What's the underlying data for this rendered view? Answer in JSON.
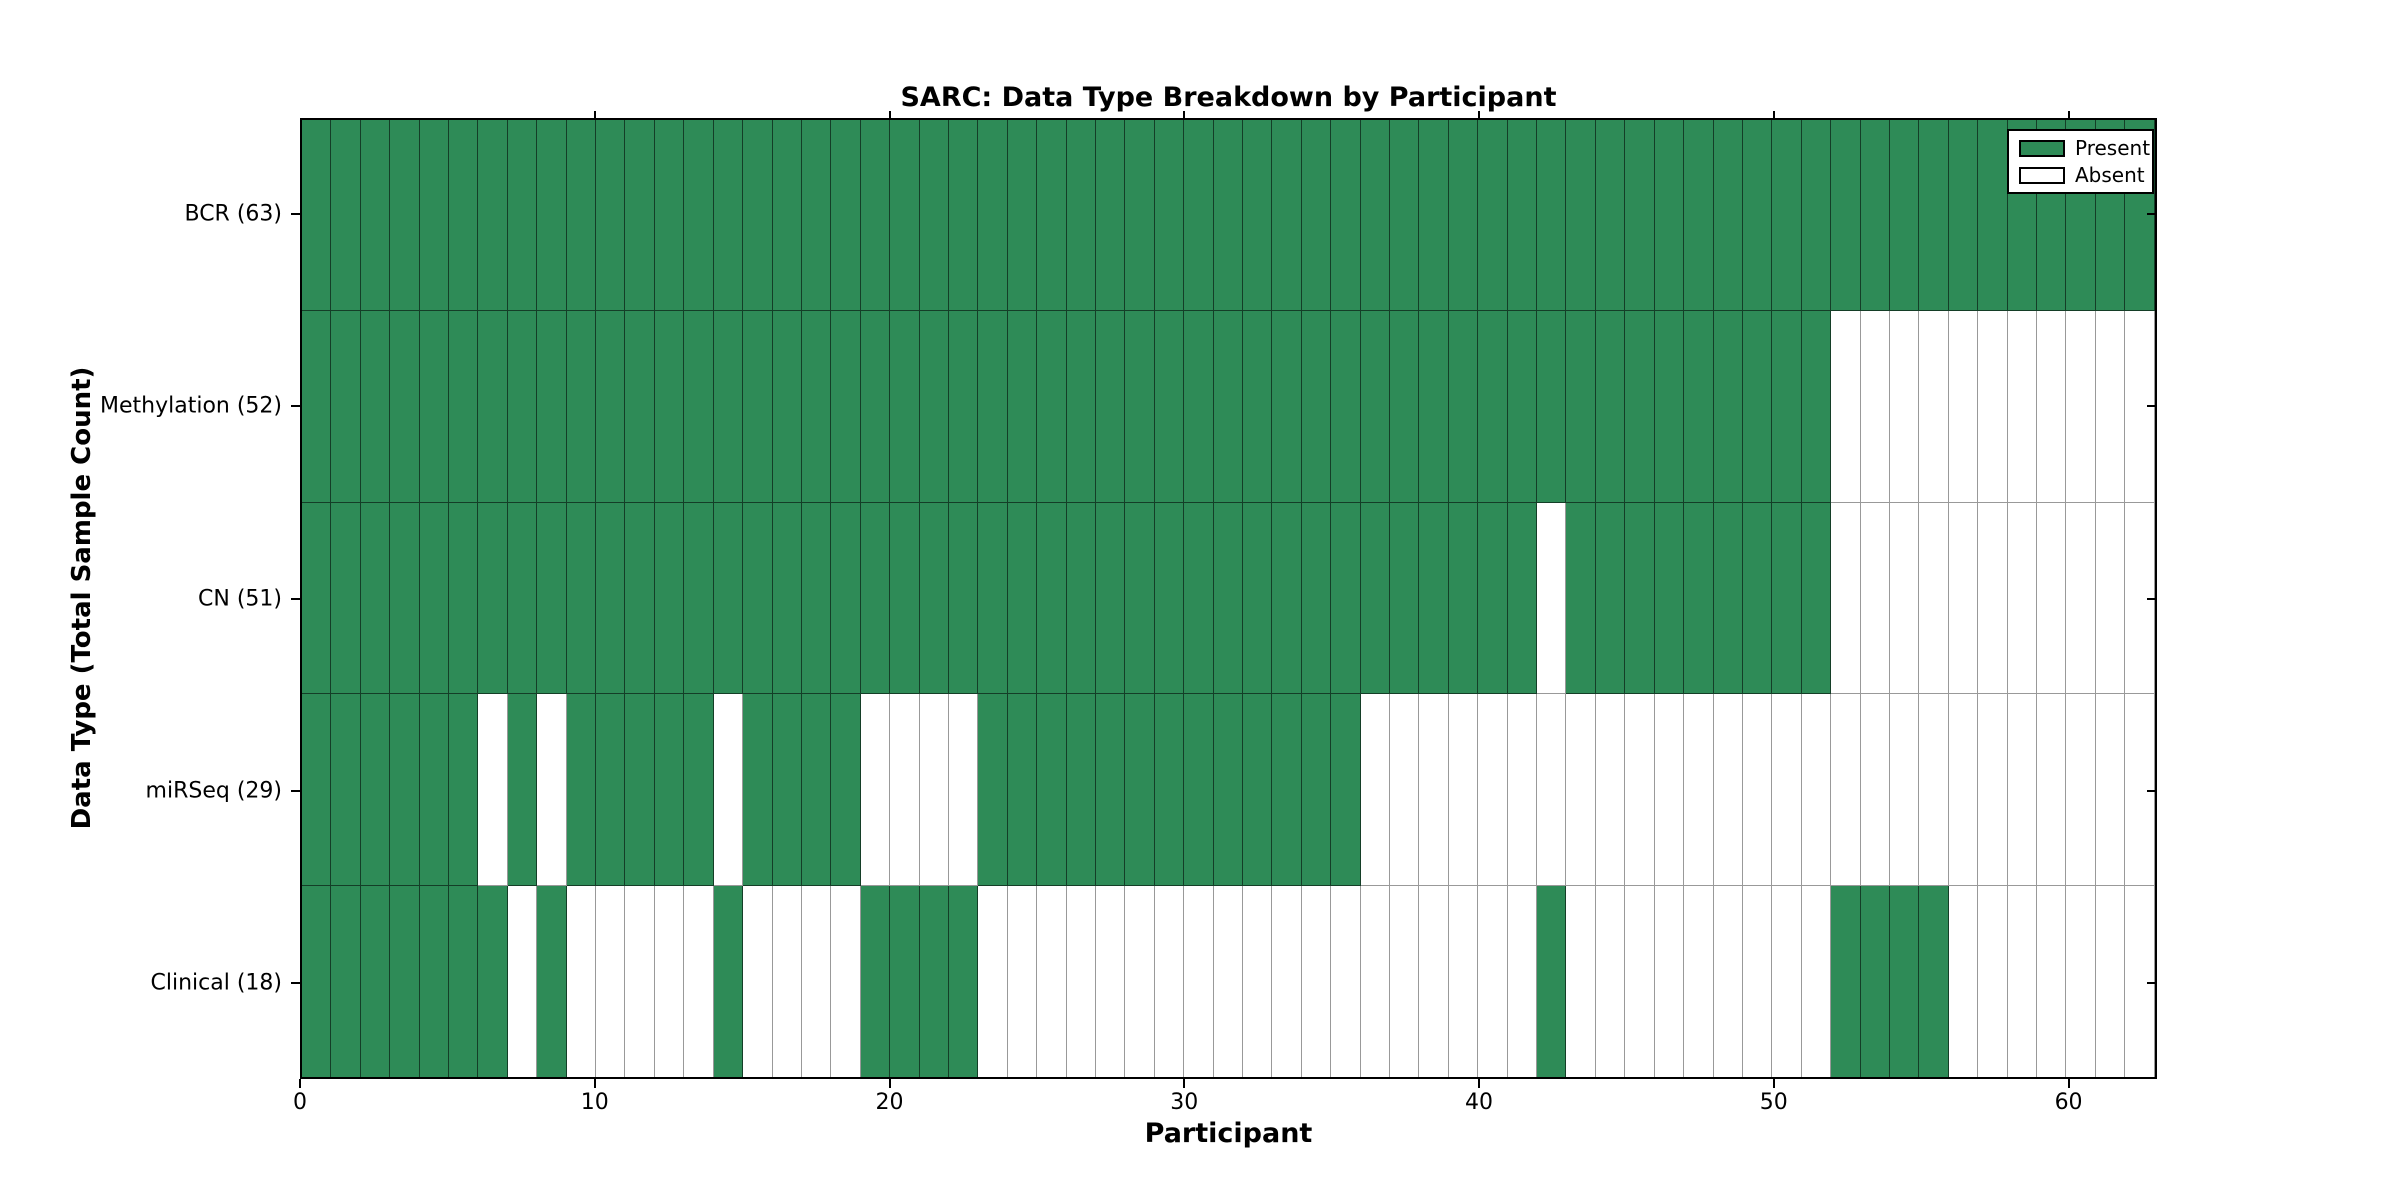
{
  "title": "SARC: Data Type Breakdown by Participant",
  "x_axis": {
    "label": "Participant",
    "ticks": [
      0,
      10,
      20,
      30,
      40,
      50,
      60
    ],
    "range": [
      0,
      63
    ]
  },
  "y_axis": {
    "label": "Data Type (Total Sample Count)"
  },
  "legend": {
    "present_label": "Present",
    "absent_label": "Absent"
  },
  "colors": {
    "present": "#2E8B57",
    "absent": "#FFFFFF"
  },
  "chart_data": {
    "type": "heatmap",
    "title": "SARC: Data Type Breakdown by Participant",
    "xlabel": "Participant",
    "ylabel": "Data Type (Total Sample Count)",
    "x_range": [
      0,
      63
    ],
    "n_participants": 63,
    "grid": true,
    "legend_position": "upper right",
    "legend_entries": [
      "Present",
      "Absent"
    ],
    "value_encoding": {
      "1": "Present",
      "0": "Absent"
    },
    "rows": [
      {
        "label": "BCR (63)",
        "data_type": "BCR",
        "total_sample_count": 63,
        "present_ranges": [
          [
            0,
            62
          ]
        ]
      },
      {
        "label": "Methylation (52)",
        "data_type": "Methylation",
        "total_sample_count": 52,
        "present_ranges": [
          [
            0,
            51
          ]
        ]
      },
      {
        "label": "CN (51)",
        "data_type": "CN",
        "total_sample_count": 51,
        "present_ranges": [
          [
            0,
            41
          ],
          [
            43,
            51
          ]
        ]
      },
      {
        "label": "miRSeq (29)",
        "data_type": "miRSeq",
        "total_sample_count": 29,
        "present_ranges": [
          [
            0,
            5
          ],
          [
            7,
            7
          ],
          [
            9,
            13
          ],
          [
            15,
            18
          ],
          [
            23,
            35
          ]
        ]
      },
      {
        "label": "Clinical (18)",
        "data_type": "Clinical",
        "total_sample_count": 18,
        "present_ranges": [
          [
            0,
            6
          ],
          [
            8,
            8
          ],
          [
            14,
            14
          ],
          [
            19,
            22
          ],
          [
            42,
            42
          ],
          [
            52,
            55
          ]
        ]
      }
    ]
  }
}
